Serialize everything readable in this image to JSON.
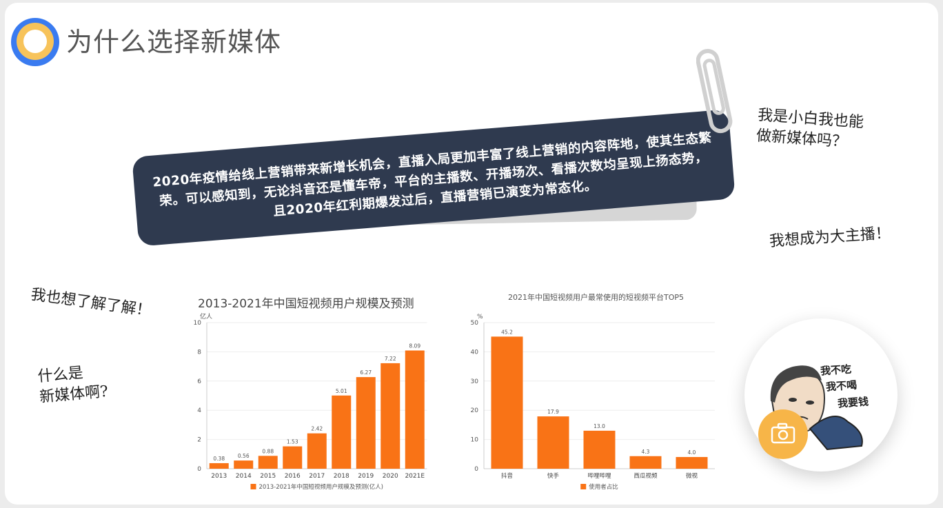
{
  "slide": {
    "title": "为什么选择新媒体",
    "banner_text": "2020年疫情给线上营销带来新增长机会，直播入局更加丰富了线上营销的内容阵地，使其生态繁荣。可以感知到，无论抖音还是懂车帝，平台的主播数、开播场次、看播次数均呈现上扬态势，且2020年红利期爆发过后，直播营销已演变为常态化。",
    "notes": {
      "note1_line1": "我是小白我也能",
      "note1_line2": "做新媒体吗？",
      "note2": "我想成为大主播！",
      "note3": "我也想了解了解！",
      "note4_line1": "什么是",
      "note4_line2": "新媒体啊?"
    },
    "sticker": {
      "line1": "我不吃",
      "line2": "我不喝",
      "line3": "我要钱",
      "icon": "camera-icon",
      "accent": "#f7b548"
    },
    "colors": {
      "logo_blue": "#3a7bf0",
      "logo_yellow": "#f7c35a",
      "banner_bg": "#2f3a4f",
      "bar": "#f97316"
    }
  },
  "chart_data": [
    {
      "type": "bar",
      "title": "2013-2021年中国短视频用户规模及预测",
      "ylabel": "亿人",
      "categories": [
        "2013",
        "2014",
        "2015",
        "2016",
        "2017",
        "2018",
        "2019",
        "2020",
        "2021E"
      ],
      "values": [
        0.38,
        0.56,
        0.88,
        1.53,
        2.42,
        5.01,
        6.27,
        7.22,
        8.09
      ],
      "value_labels": [
        "0.38",
        "0.56",
        "0.88",
        "1.53",
        "2.42",
        "5.01",
        "6.27",
        "7.22",
        "8.09"
      ],
      "ylim": [
        0,
        10
      ],
      "yticks": [
        "0",
        "2",
        "4",
        "6",
        "8",
        "10"
      ],
      "legend": "2013-2021年中国短视频用户规模及预测(亿人)",
      "legend_position": "bottom",
      "grid": true
    },
    {
      "type": "bar",
      "title": "2021年中国短视频用户最常使用的短视频平台TOP5",
      "ylabel": "%",
      "categories": [
        "抖音",
        "快手",
        "哔哩哔哩",
        "西瓜视频",
        "微视"
      ],
      "values": [
        45.2,
        17.9,
        13.0,
        4.3,
        4.0
      ],
      "value_labels": [
        "45.2",
        "17.9",
        "13.0",
        "4.3",
        "4.0"
      ],
      "ylim": [
        0,
        50
      ],
      "yticks": [
        "0",
        "10",
        "20",
        "30",
        "40",
        "50"
      ],
      "legend": "使用者占比",
      "legend_position": "bottom",
      "grid": true
    }
  ]
}
